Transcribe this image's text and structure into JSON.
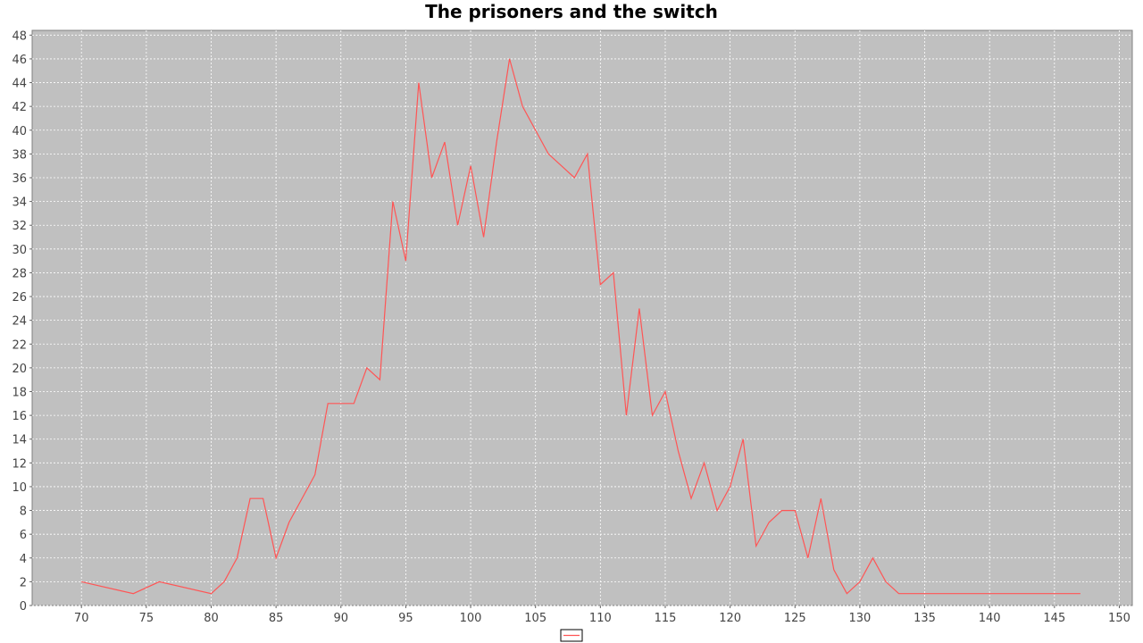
{
  "chart_data": {
    "type": "line",
    "title": "The prisoners and the switch",
    "xlabel": "",
    "ylabel": "",
    "xlim": [
      66.2,
      151.0
    ],
    "ylim": [
      0,
      48.4
    ],
    "x_ticks": [
      70,
      75,
      80,
      85,
      90,
      95,
      100,
      105,
      110,
      115,
      120,
      125,
      130,
      135,
      140,
      145,
      150
    ],
    "y_ticks": [
      0,
      2,
      4,
      6,
      8,
      10,
      12,
      14,
      16,
      18,
      20,
      22,
      24,
      26,
      28,
      30,
      32,
      34,
      36,
      38,
      40,
      42,
      44,
      46,
      48
    ],
    "grid": true,
    "legend_position": "bottom-center",
    "colors": {
      "series": "#ff5555",
      "plot_background": "#c0c0c0",
      "grid": "#ffffff"
    },
    "series": [
      {
        "name": "",
        "x": [
          70,
          74,
          76,
          80,
          81,
          82,
          83,
          84,
          85,
          86,
          88,
          89,
          91,
          92,
          93,
          94,
          95,
          96,
          97,
          98,
          99,
          100,
          101,
          102,
          103,
          104,
          106,
          108,
          109,
          110,
          111,
          112,
          113,
          114,
          115,
          116,
          117,
          118,
          119,
          120,
          121,
          122,
          123,
          124,
          125,
          126,
          127,
          128,
          129,
          130,
          131,
          132,
          133,
          147
        ],
        "y": [
          2,
          1,
          2,
          1,
          2,
          4,
          9,
          9,
          4,
          7,
          11,
          17,
          17,
          20,
          19,
          34,
          29,
          44,
          36,
          39,
          32,
          37,
          31,
          39,
          46,
          42,
          38,
          36,
          38,
          27,
          28,
          16,
          25,
          16,
          18,
          13,
          9,
          12,
          8,
          10,
          14,
          5,
          7,
          8,
          8,
          4,
          9,
          3,
          1,
          2,
          4,
          2,
          1,
          1
        ]
      }
    ]
  }
}
